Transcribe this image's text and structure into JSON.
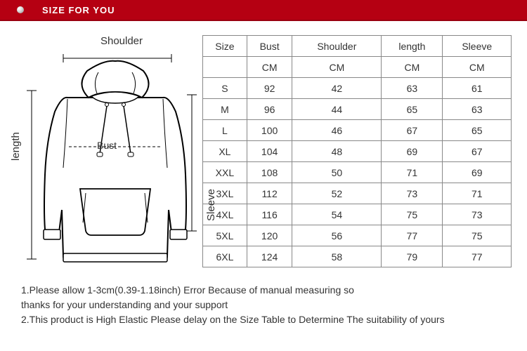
{
  "banner": {
    "title": "SIZE FOR YOU"
  },
  "diagram": {
    "shoulder_label": "Shoulder",
    "length_label": "length",
    "sleeve_label": "Sleeve",
    "bust_label": "Bust"
  },
  "size_table": {
    "type": "table",
    "columns": [
      "Size",
      "Bust",
      "Shoulder",
      "length",
      "Sleeve"
    ],
    "unit_row": [
      "",
      "CM",
      "CM",
      "CM",
      "CM"
    ],
    "rows": [
      [
        "S",
        "92",
        "42",
        "63",
        "61"
      ],
      [
        "M",
        "96",
        "44",
        "65",
        "63"
      ],
      [
        "L",
        "100",
        "46",
        "67",
        "65"
      ],
      [
        "XL",
        "104",
        "48",
        "69",
        "67"
      ],
      [
        "XXL",
        "108",
        "50",
        "71",
        "69"
      ],
      [
        "3XL",
        "112",
        "52",
        "73",
        "71"
      ],
      [
        "4XL",
        "116",
        "54",
        "75",
        "73"
      ],
      [
        "5XL",
        "120",
        "56",
        "77",
        "75"
      ],
      [
        "6XL",
        "124",
        "58",
        "79",
        "77"
      ]
    ],
    "col_widths": [
      "88px",
      "88px",
      "88px",
      "88px",
      "88px"
    ],
    "border_color": "#888",
    "font_size": 14
  },
  "footnotes": {
    "line1": "1.Please allow 1-3cm(0.39-1.18inch) Error Because of manual measuring so",
    "line2": "thanks for your understanding and your support",
    "line3": "2.This product is High Elastic    Please delay on the Size Table to Determine The suitability of yours"
  },
  "colors": {
    "banner_bg": "#b50012",
    "banner_text": "#ffffff",
    "border": "#888888",
    "page_bg": "#ffffff"
  }
}
